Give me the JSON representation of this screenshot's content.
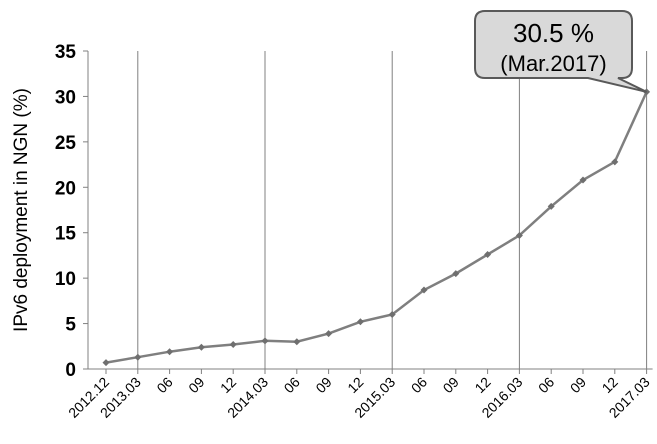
{
  "chart_data": {
    "type": "line",
    "ylabel": "IPv6 deployment in NGN (%)",
    "ylim": [
      0,
      35
    ],
    "yticks": [
      "0",
      "5",
      "10",
      "15",
      "20",
      "25",
      "30",
      "35"
    ],
    "categories": [
      "2012.12",
      "2013.03",
      "06",
      "09",
      "12",
      "2014.03",
      "06",
      "09",
      "12",
      "2015.03",
      "06",
      "09",
      "12",
      "2016.03",
      "06",
      "09",
      "12",
      "2017.03"
    ],
    "series": [
      {
        "values": [
          0.7,
          1.3,
          1.9,
          2.4,
          2.7,
          3.1,
          3.0,
          3.9,
          5.2,
          6.0,
          8.7,
          10.5,
          12.6,
          14.7,
          17.9,
          20.8,
          22.8,
          30.5
        ]
      }
    ],
    "grid_vertical_at": [
      "2013.03",
      "2014.03",
      "2015.03",
      "2016.03",
      "2017.03"
    ],
    "grid_horizontal": false,
    "annotation": {
      "value": "30.5 %",
      "date": "(Mar.2017)"
    },
    "colors": {
      "line": "#7f7f7f",
      "marker": "#6f6f6f",
      "grid": "#808080",
      "callout_fill": "#d9d9d9",
      "callout_border": "#595959"
    }
  }
}
